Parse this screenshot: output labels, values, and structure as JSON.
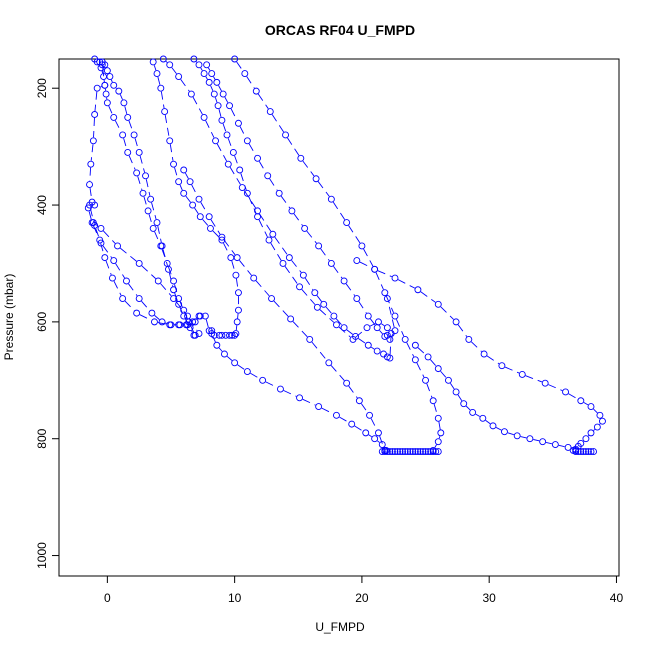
{
  "chart_data": {
    "type": "scatter",
    "title": "ORCAS RF04 U_FMPD",
    "xlabel": "U_FMPD",
    "ylabel": "Pressure (mbar)",
    "xlim": [
      -3.8,
      40.2
    ],
    "ylim": [
      150,
      1035
    ],
    "y_reversed": true,
    "x_ticks": [
      0,
      10,
      20,
      30,
      40
    ],
    "y_ticks": [
      200,
      400,
      600,
      800,
      1000
    ],
    "grid": false,
    "marker": "open-circle",
    "line_style": "dashed",
    "color": "#0000ff",
    "series": [
      {
        "x": [
          -0.6,
          -0.4,
          -0.2,
          -0.8,
          -1.0,
          -1.1,
          -1.3,
          -1.4,
          -1.2,
          -1.0,
          -1.5,
          -1.2,
          -0.6,
          -0.2,
          0.4,
          1.2,
          2.3,
          3.7,
          4.9,
          5.7,
          6.3,
          6.9,
          7.3,
          7.7,
          8.0,
          8.2,
          8.4,
          8.8,
          9.0,
          9.3,
          9.6,
          9.8
        ],
        "y": [
          155,
          160,
          195,
          200,
          245,
          290,
          330,
          365,
          395,
          400,
          405,
          430,
          460,
          490,
          525,
          560,
          585,
          600,
          605,
          605,
          605,
          600,
          590,
          590,
          615,
          615,
          623,
          623,
          623,
          623,
          623,
          623
        ]
      },
      {
        "x": [
          -0.4,
          -0.2,
          0.0,
          0.2,
          0.5,
          0.9,
          1.3,
          1.6,
          2.1,
          2.5,
          3.0,
          3.4,
          3.9,
          4.3,
          4.8,
          5.2,
          5.6,
          6.0,
          6.5,
          6.8
        ],
        "y": [
          155,
          160,
          170,
          180,
          195,
          205,
          225,
          250,
          280,
          310,
          350,
          390,
          430,
          470,
          510,
          545,
          570,
          590,
          610,
          623
        ]
      },
      {
        "x": [
          -1.0,
          -0.8,
          -0.5,
          -0.3,
          -0.2,
          -0.1,
          0.0,
          0.5,
          1.2,
          1.6,
          2.3,
          2.8,
          3.2,
          3.6,
          4.2,
          4.7,
          5.2,
          5.6,
          6.0,
          6.4,
          6.9
        ],
        "y": [
          150,
          155,
          165,
          180,
          195,
          210,
          225,
          250,
          280,
          310,
          345,
          380,
          410,
          440,
          470,
          500,
          530,
          560,
          580,
          600,
          623
        ]
      },
      {
        "x": [
          -1.4,
          -1.0,
          -0.5,
          0.5,
          1.5,
          2.5,
          3.5,
          4.3,
          5.0,
          5.6,
          6.2,
          6.7,
          7.2
        ],
        "y": [
          400,
          435,
          465,
          495,
          530,
          560,
          585,
          600,
          605,
          605,
          605,
          600,
          590
        ]
      },
      {
        "x": [
          -1.1,
          -0.5,
          0.8,
          2.5,
          4.0,
          5.2,
          6.3,
          7.2
        ],
        "y": [
          430,
          440,
          470,
          500,
          530,
          560,
          590,
          620
        ]
      },
      {
        "x": [
          3.6,
          3.9,
          4.2,
          4.5,
          4.9,
          5.2,
          5.6,
          6.0,
          6.7,
          7.3,
          8.1,
          9.0,
          9.7,
          10.1,
          10.3,
          10.3,
          10.2,
          10.1,
          10.0
        ],
        "y": [
          155,
          175,
          200,
          240,
          290,
          330,
          360,
          380,
          400,
          420,
          440,
          460,
          490,
          520,
          550,
          580,
          600,
          620,
          623
        ]
      },
      {
        "x": [
          4.4,
          4.9,
          5.6,
          6.6,
          7.6,
          8.5,
          9.5,
          10.6,
          11.8,
          13.0,
          14.3,
          15.4,
          16.3,
          17.0,
          17.8,
          18.6,
          19.5,
          20.5,
          21.2,
          21.7,
          22.0,
          22.2,
          22.3,
          22.0
        ],
        "y": [
          150,
          160,
          180,
          210,
          250,
          290,
          330,
          370,
          410,
          450,
          490,
          520,
          550,
          570,
          590,
          610,
          625,
          640,
          650,
          655,
          660,
          662,
          620,
          623
        ]
      },
      {
        "x": [
          6.8,
          7.2,
          7.6,
          8.0,
          8.4,
          8.7,
          9.0,
          9.4,
          9.9,
          10.4,
          11.0,
          11.8,
          12.7,
          13.8,
          15.1,
          16.5,
          18.0,
          19.3,
          20.4,
          21.3,
          22.0
        ],
        "y": [
          150,
          160,
          175,
          190,
          210,
          230,
          255,
          280,
          310,
          340,
          380,
          420,
          460,
          500,
          540,
          575,
          605,
          630,
          610,
          600,
          610
        ]
      },
      {
        "x": [
          7.8,
          8.2,
          8.6,
          9.1,
          9.6,
          10.3,
          11.0,
          11.8,
          12.6,
          13.5,
          14.5,
          15.5,
          16.6,
          17.6,
          18.6,
          19.6,
          20.5,
          21.2,
          21.8,
          22.2,
          22.6,
          22.0
        ],
        "y": [
          160,
          175,
          190,
          210,
          230,
          260,
          290,
          320,
          350,
          380,
          410,
          440,
          470,
          500,
          530,
          560,
          590,
          610,
          625,
          630,
          615,
          560
        ]
      },
      {
        "x": [
          10.0,
          10.8,
          11.7,
          12.8,
          14.0,
          15.2,
          16.4,
          17.6,
          18.8,
          20.0,
          21.0,
          21.8,
          22.6,
          23.4,
          24.2,
          25.0,
          25.6,
          26.0,
          26.2,
          26.0,
          25.6
        ],
        "y": [
          150,
          175,
          205,
          240,
          280,
          320,
          355,
          390,
          430,
          470,
          510,
          550,
          590,
          630,
          665,
          700,
          735,
          765,
          790,
          805,
          820
        ]
      },
      {
        "x": [
          6.0,
          6.5,
          7.2,
          8.0,
          9.0,
          10.2,
          11.5,
          12.9,
          14.4,
          15.9,
          17.4,
          18.8,
          19.8,
          20.6,
          21.3,
          21.8
        ],
        "y": [
          340,
          360,
          390,
          420,
          455,
          490,
          525,
          560,
          595,
          630,
          670,
          705,
          735,
          760,
          790,
          820
        ]
      },
      {
        "x": [
          8.2,
          8.6,
          9.2,
          10.0,
          11.0,
          12.2,
          13.6,
          15.1,
          16.6,
          18.0,
          19.2,
          20.3,
          21.0,
          21.6,
          21.9
        ],
        "y": [
          620,
          640,
          655,
          670,
          685,
          700,
          715,
          730,
          745,
          760,
          775,
          790,
          800,
          810,
          820
        ]
      },
      {
        "x": [
          19.6,
          21.0,
          22.6,
          24.4,
          26.0,
          27.4,
          28.4,
          29.6,
          31.0,
          32.6,
          34.4,
          36.0,
          37.2,
          38.0,
          38.7,
          38.9,
          38.5,
          38.0,
          37.6,
          37.2,
          37.0,
          36.8,
          36.6
        ],
        "y": [
          495,
          510,
          525,
          545,
          570,
          600,
          630,
          655,
          675,
          690,
          705,
          720,
          735,
          745,
          760,
          770,
          780,
          790,
          800,
          808,
          813,
          818,
          820
        ]
      },
      {
        "x": [
          21.6,
          21.8,
          22.0,
          22.2,
          22.4,
          22.6,
          22.8,
          23.0,
          23.2,
          23.4,
          23.6,
          23.8,
          24.0,
          24.2,
          24.4,
          24.6,
          24.8,
          25.0,
          25.2,
          25.4,
          25.6,
          25.8,
          26.0
        ],
        "y": [
          822,
          822,
          822,
          822,
          822,
          822,
          822,
          822,
          822,
          822,
          822,
          822,
          822,
          822,
          822,
          822,
          822,
          822,
          822,
          822,
          822,
          822,
          822
        ]
      },
      {
        "x": [
          24.2,
          25.2,
          26.0,
          26.8,
          27.4,
          28.0,
          28.7,
          29.5,
          30.3,
          31.2,
          32.2,
          33.2,
          34.2,
          35.2,
          36.2,
          36.8
        ],
        "y": [
          640,
          660,
          680,
          700,
          720,
          740,
          755,
          765,
          778,
          788,
          795,
          800,
          805,
          810,
          815,
          820
        ]
      },
      {
        "x": [
          36.8,
          37.0,
          37.2,
          37.4,
          37.6,
          37.8,
          38.0,
          38.2
        ],
        "y": [
          822,
          822,
          822,
          822,
          822,
          822,
          822,
          822
        ]
      }
    ]
  }
}
